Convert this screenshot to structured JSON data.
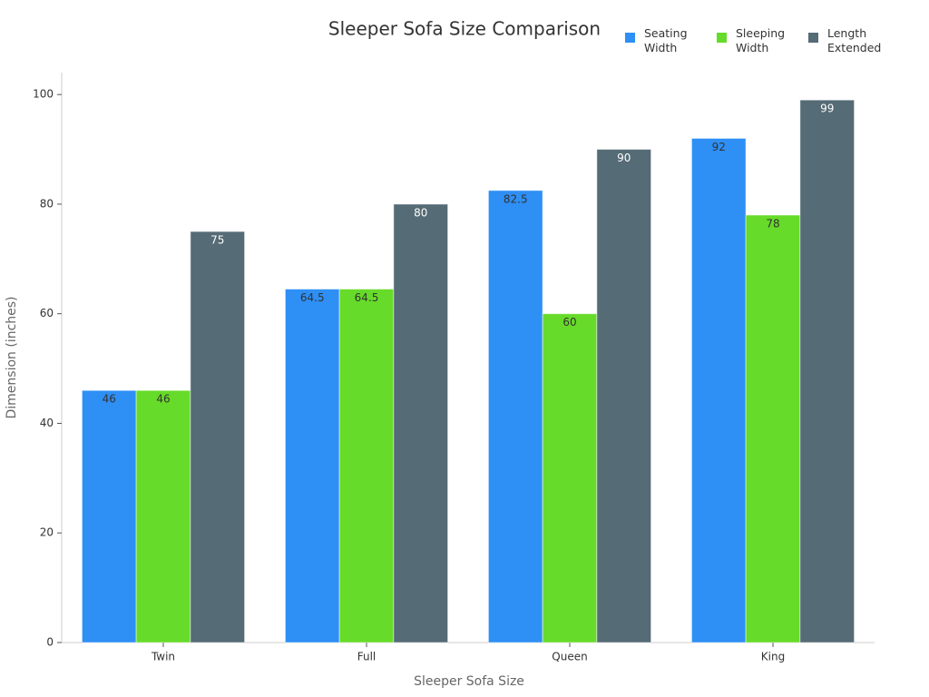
{
  "chart_data": {
    "type": "bar",
    "title": "Sleeper Sofa Size Comparison",
    "x_label": "Sleeper Sofa Size",
    "y_label": "Dimension (inches)",
    "categories": [
      "Twin",
      "Full",
      "Queen",
      "King"
    ],
    "series": [
      {
        "name": "Seating Width",
        "color": "#2e8ff5",
        "label_color": "#333333",
        "values": [
          46,
          64.5,
          82.5,
          92
        ]
      },
      {
        "name": "Sleeping Width",
        "color": "#66db29",
        "label_color": "#333333",
        "values": [
          46,
          64.5,
          60,
          78
        ]
      },
      {
        "name": "Length Extended",
        "color": "#556b75",
        "label_color": "#ffffff",
        "values": [
          75,
          80,
          90,
          99
        ]
      }
    ],
    "ylim": [
      0,
      104
    ],
    "yticks": [
      0,
      20,
      40,
      60,
      80,
      100
    ],
    "grid": false,
    "legend": "upper-right"
  }
}
